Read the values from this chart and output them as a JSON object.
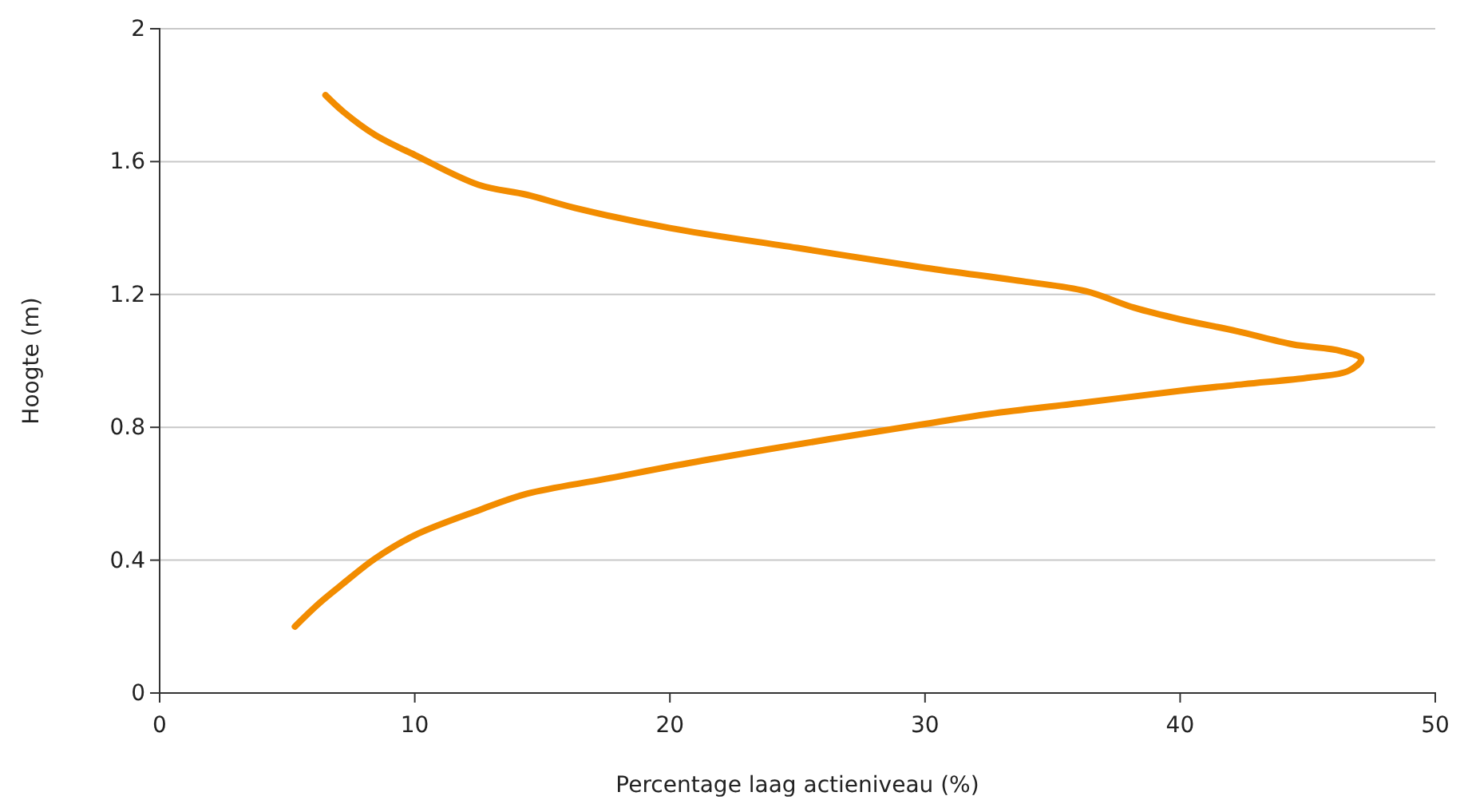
{
  "chart_data": {
    "type": "line",
    "xlabel": "Percentage laag actieniveau (%)",
    "ylabel": "Hoogte (m)",
    "xlim": [
      0,
      50
    ],
    "xticks": [
      0,
      10,
      20,
      30,
      40,
      50
    ],
    "ylim": [
      0,
      2
    ],
    "yticks": [
      0,
      0.4,
      0.8,
      1.2,
      1.6,
      2
    ],
    "grid": "y",
    "marker": "none",
    "line_style": "solid",
    "series": [
      {
        "color": "#f28c00",
        "x": [
          6.5,
          7.2,
          8.45,
          10,
          12.5,
          14.4,
          16.3,
          20,
          25,
          30,
          33.8,
          36.3,
          38.2,
          40,
          42.2,
          44.4,
          46.3,
          47.1,
          46.6,
          45.1,
          42.5,
          40,
          36.3,
          32.5,
          30,
          26.3,
          21.3,
          17.5,
          14.4,
          12.5,
          10,
          8.45,
          7.2,
          6.25,
          5.3
        ],
        "values": [
          1.8,
          1.75,
          1.68,
          1.62,
          1.53,
          1.5,
          1.46,
          1.4,
          1.34,
          1.28,
          1.24,
          1.21,
          1.16,
          1.125,
          1.09,
          1.05,
          1.03,
          1.005,
          0.97,
          0.95,
          0.93,
          0.91,
          0.875,
          0.84,
          0.81,
          0.765,
          0.7,
          0.645,
          0.6,
          0.55,
          0.475,
          0.405,
          0.33,
          0.27,
          0.2
        ]
      }
    ]
  }
}
